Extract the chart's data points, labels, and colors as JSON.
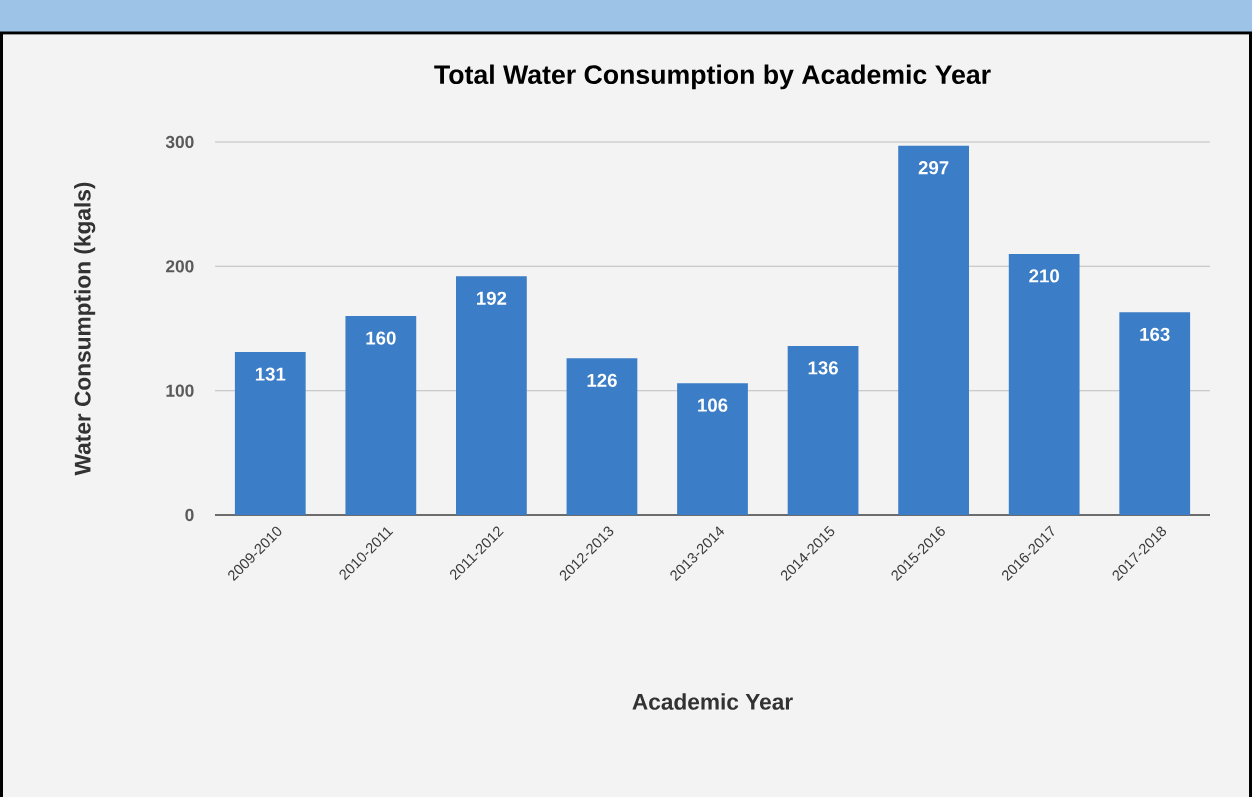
{
  "chart_data": {
    "type": "bar",
    "title": "Total Water Consumption by Academic Year",
    "xlabel": "Academic Year",
    "ylabel": "Water Consumption (kgals)",
    "categories": [
      "2009-2010",
      "2010-2011",
      "2011-2012",
      "2012-2013",
      "2013-2014",
      "2014-2015",
      "2015-2016",
      "2016-2017",
      "2017-2018"
    ],
    "values": [
      131,
      160,
      192,
      126,
      106,
      136,
      297,
      210,
      163
    ],
    "color": "#3b7dc6",
    "ylim": [
      0,
      300
    ],
    "yticks": [
      0,
      100,
      200,
      300
    ],
    "grid": "y",
    "data_labels": true
  }
}
